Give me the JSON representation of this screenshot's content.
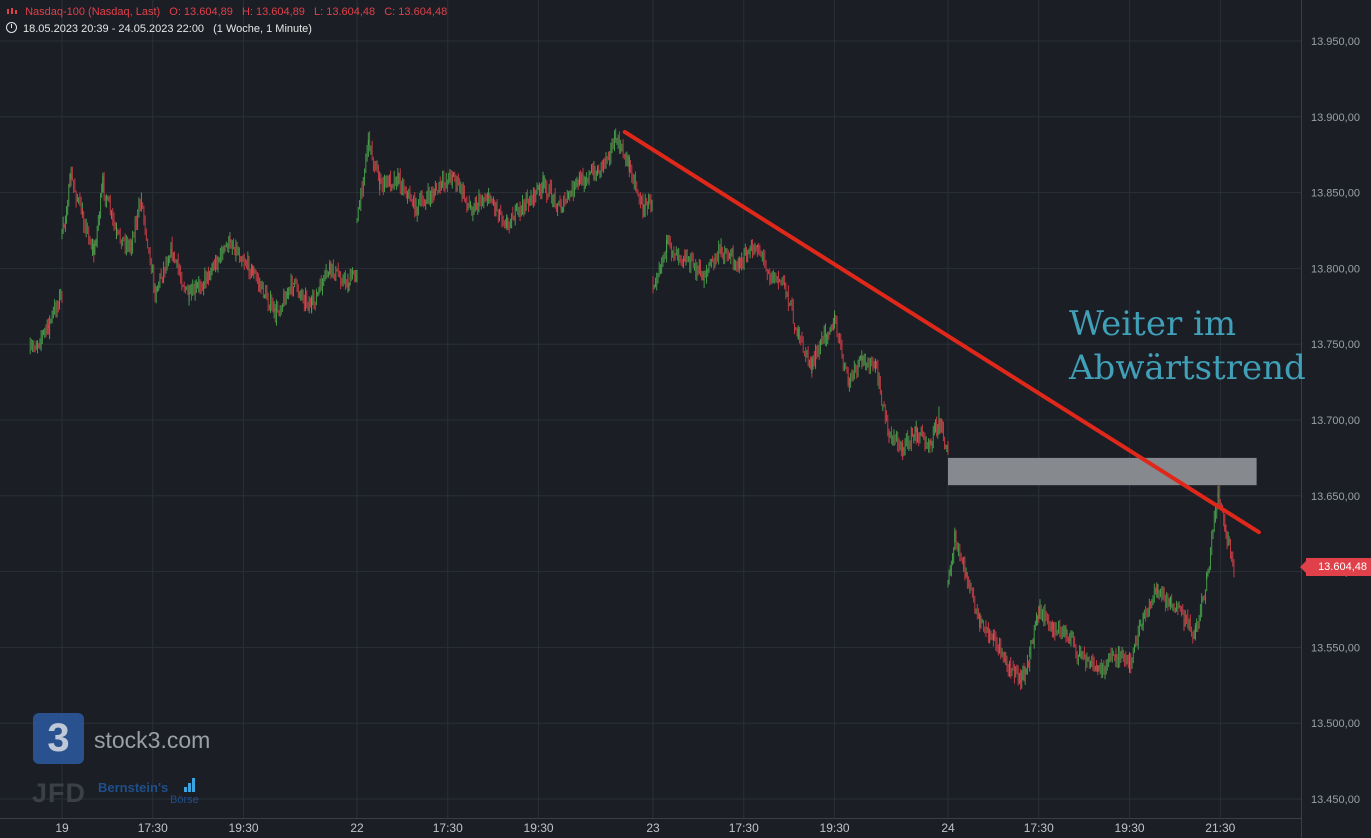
{
  "header": {
    "instrument": "Nasdaq-100 (Nasdaq, Last)",
    "open": "O: 13.604,89",
    "high": "H: 13.604,89",
    "low": "L: 13.604,48",
    "close": "C: 13.604,48",
    "range": "18.05.2023 20:39 - 24.05.2023 22:00",
    "interval": "(1 Woche, 1 Minute)"
  },
  "annotation": {
    "line1": "Weiter im",
    "line2": "Abwärtstrend"
  },
  "last_price": {
    "label": "13.604,48",
    "value": 13604.48
  },
  "watermarks": {
    "stock3": "stock3.com",
    "logo": "3",
    "jfd": "JFD",
    "bernstein": "Bernstein's",
    "boerse": "Börse"
  },
  "colors": {
    "background": "#1b1e25",
    "grid": "#2a2e36",
    "trendline": "#e0281a",
    "up": "#4caf50",
    "down": "#e0404a",
    "zone": "#8c8f94",
    "price_tag": "#e0404a"
  },
  "chart_data": {
    "type": "candlestick",
    "ylim": [
      13430,
      13980
    ],
    "y_ticks": [
      {
        "value": 13950,
        "label": "13.950,00"
      },
      {
        "value": 13900,
        "label": "13.900,00"
      },
      {
        "value": 13850,
        "label": "13.850,00"
      },
      {
        "value": 13800,
        "label": "13.800,00"
      },
      {
        "value": 13750,
        "label": "13.750,00"
      },
      {
        "value": 13700,
        "label": "13.700,00"
      },
      {
        "value": 13650,
        "label": "13.650,00"
      },
      {
        "value": 13600,
        "label": "13.600,00"
      },
      {
        "value": 13550,
        "label": "13.550,00"
      },
      {
        "value": 13500,
        "label": "13.500,00"
      },
      {
        "value": 13450,
        "label": "13.450,00"
      }
    ],
    "x_ticks": [
      {
        "session": 0,
        "hour": 15.5,
        "label": "19"
      },
      {
        "session": 0,
        "hour": 17.5,
        "label": "17:30"
      },
      {
        "session": 0,
        "hour": 19.5,
        "label": "19:30"
      },
      {
        "session": 1,
        "hour": 15.5,
        "label": "22"
      },
      {
        "session": 1,
        "hour": 17.5,
        "label": "17:30"
      },
      {
        "session": 1,
        "hour": 19.5,
        "label": "19:30"
      },
      {
        "session": 2,
        "hour": 15.5,
        "label": "23"
      },
      {
        "session": 2,
        "hour": 17.5,
        "label": "17:30"
      },
      {
        "session": 2,
        "hour": 19.5,
        "label": "19:30"
      },
      {
        "session": 3,
        "hour": 15.5,
        "label": "24"
      },
      {
        "session": 3,
        "hour": 17.5,
        "label": "17:30"
      },
      {
        "session": 3,
        "hour": 19.5,
        "label": "19:30"
      },
      {
        "session": 3,
        "hour": 21.5,
        "label": "21:30"
      }
    ],
    "price_path": [
      {
        "session": -1,
        "hour": 21.3,
        "price": 13745
      },
      {
        "session": -1,
        "hour": 21.7,
        "price": 13762
      },
      {
        "session": -1,
        "hour": 22.0,
        "price": 13785
      },
      {
        "session": 0,
        "hour": 15.5,
        "price": 13820
      },
      {
        "session": 0,
        "hour": 15.7,
        "price": 13860
      },
      {
        "session": 0,
        "hour": 15.95,
        "price": 13835
      },
      {
        "session": 0,
        "hour": 16.2,
        "price": 13810
      },
      {
        "session": 0,
        "hour": 16.4,
        "price": 13855
      },
      {
        "session": 0,
        "hour": 16.7,
        "price": 13822
      },
      {
        "session": 0,
        "hour": 17.0,
        "price": 13815
      },
      {
        "session": 0,
        "hour": 17.25,
        "price": 13845
      },
      {
        "session": 0,
        "hour": 17.55,
        "price": 13785
      },
      {
        "session": 0,
        "hour": 17.9,
        "price": 13812
      },
      {
        "session": 0,
        "hour": 18.3,
        "price": 13780
      },
      {
        "session": 0,
        "hour": 18.7,
        "price": 13795
      },
      {
        "session": 0,
        "hour": 19.2,
        "price": 13818
      },
      {
        "session": 0,
        "hour": 19.7,
        "price": 13798
      },
      {
        "session": 0,
        "hour": 20.2,
        "price": 13770
      },
      {
        "session": 0,
        "hour": 20.6,
        "price": 13790
      },
      {
        "session": 0,
        "hour": 21.0,
        "price": 13775
      },
      {
        "session": 0,
        "hour": 21.4,
        "price": 13800
      },
      {
        "session": 0,
        "hour": 21.8,
        "price": 13790
      },
      {
        "session": 0,
        "hour": 22.0,
        "price": 13800
      },
      {
        "session": 1,
        "hour": 15.5,
        "price": 13830
      },
      {
        "session": 1,
        "hour": 15.75,
        "price": 13885
      },
      {
        "session": 1,
        "hour": 16.0,
        "price": 13855
      },
      {
        "session": 1,
        "hour": 16.4,
        "price": 13860
      },
      {
        "session": 1,
        "hour": 16.8,
        "price": 13840
      },
      {
        "session": 1,
        "hour": 17.2,
        "price": 13850
      },
      {
        "session": 1,
        "hour": 17.6,
        "price": 13862
      },
      {
        "session": 1,
        "hour": 18.0,
        "price": 13840
      },
      {
        "session": 1,
        "hour": 18.4,
        "price": 13848
      },
      {
        "session": 1,
        "hour": 18.8,
        "price": 13830
      },
      {
        "session": 1,
        "hour": 19.2,
        "price": 13842
      },
      {
        "session": 1,
        "hour": 19.6,
        "price": 13855
      },
      {
        "session": 1,
        "hour": 20.0,
        "price": 13840
      },
      {
        "session": 1,
        "hour": 20.4,
        "price": 13858
      },
      {
        "session": 1,
        "hour": 20.8,
        "price": 13864
      },
      {
        "session": 1,
        "hour": 21.2,
        "price": 13885
      },
      {
        "session": 1,
        "hour": 21.5,
        "price": 13868
      },
      {
        "session": 1,
        "hour": 21.8,
        "price": 13840
      },
      {
        "session": 1,
        "hour": 22.0,
        "price": 13845
      },
      {
        "session": 2,
        "hour": 15.5,
        "price": 13790
      },
      {
        "session": 2,
        "hour": 15.8,
        "price": 13815
      },
      {
        "session": 2,
        "hour": 16.2,
        "price": 13808
      },
      {
        "session": 2,
        "hour": 16.6,
        "price": 13795
      },
      {
        "session": 2,
        "hour": 17.0,
        "price": 13812
      },
      {
        "session": 2,
        "hour": 17.4,
        "price": 13803
      },
      {
        "session": 2,
        "hour": 17.8,
        "price": 13815
      },
      {
        "session": 2,
        "hour": 18.1,
        "price": 13795
      },
      {
        "session": 2,
        "hour": 18.4,
        "price": 13790
      },
      {
        "session": 2,
        "hour": 18.7,
        "price": 13755
      },
      {
        "session": 2,
        "hour": 19.0,
        "price": 13735
      },
      {
        "session": 2,
        "hour": 19.3,
        "price": 13758
      },
      {
        "session": 2,
        "hour": 19.5,
        "price": 13765
      },
      {
        "session": 2,
        "hour": 19.8,
        "price": 13725
      },
      {
        "session": 2,
        "hour": 20.1,
        "price": 13740
      },
      {
        "session": 2,
        "hour": 20.4,
        "price": 13735
      },
      {
        "session": 2,
        "hour": 20.7,
        "price": 13690
      },
      {
        "session": 2,
        "hour": 21.0,
        "price": 13682
      },
      {
        "session": 2,
        "hour": 21.3,
        "price": 13692
      },
      {
        "session": 2,
        "hour": 21.6,
        "price": 13685
      },
      {
        "session": 2,
        "hour": 21.8,
        "price": 13700
      },
      {
        "session": 2,
        "hour": 22.0,
        "price": 13680
      },
      {
        "session": 3,
        "hour": 15.5,
        "price": 13590
      },
      {
        "session": 3,
        "hour": 15.65,
        "price": 13620
      },
      {
        "session": 3,
        "hour": 15.9,
        "price": 13598
      },
      {
        "session": 3,
        "hour": 16.2,
        "price": 13565
      },
      {
        "session": 3,
        "hour": 16.5,
        "price": 13555
      },
      {
        "session": 3,
        "hour": 16.8,
        "price": 13540
      },
      {
        "session": 3,
        "hour": 17.1,
        "price": 13528
      },
      {
        "session": 3,
        "hour": 17.3,
        "price": 13545
      },
      {
        "session": 3,
        "hour": 17.5,
        "price": 13575
      },
      {
        "session": 3,
        "hour": 17.8,
        "price": 13562
      },
      {
        "session": 3,
        "hour": 18.1,
        "price": 13560
      },
      {
        "session": 3,
        "hour": 18.4,
        "price": 13545
      },
      {
        "session": 3,
        "hour": 18.8,
        "price": 13535
      },
      {
        "session": 3,
        "hour": 19.2,
        "price": 13545
      },
      {
        "session": 3,
        "hour": 19.5,
        "price": 13538
      },
      {
        "session": 3,
        "hour": 19.8,
        "price": 13570
      },
      {
        "session": 3,
        "hour": 20.1,
        "price": 13588
      },
      {
        "session": 3,
        "hour": 20.4,
        "price": 13580
      },
      {
        "session": 3,
        "hour": 20.7,
        "price": 13568
      },
      {
        "session": 3,
        "hour": 20.95,
        "price": 13560
      },
      {
        "session": 3,
        "hour": 21.2,
        "price": 13595
      },
      {
        "session": 3,
        "hour": 21.45,
        "price": 13652
      },
      {
        "session": 3,
        "hour": 21.6,
        "price": 13628
      },
      {
        "session": 3,
        "hour": 21.8,
        "price": 13604
      }
    ],
    "trendline": [
      {
        "session": 1,
        "hour": 21.4,
        "price": 13890
      },
      {
        "session": 4,
        "hour": 15.85,
        "price": 13626
      }
    ],
    "zone": {
      "start": {
        "session": 3,
        "hour": 15.5
      },
      "end": {
        "session": 4,
        "hour": 15.8
      },
      "low": 13657,
      "high": 13675
    },
    "grid": true,
    "y_axis_position": "right"
  }
}
